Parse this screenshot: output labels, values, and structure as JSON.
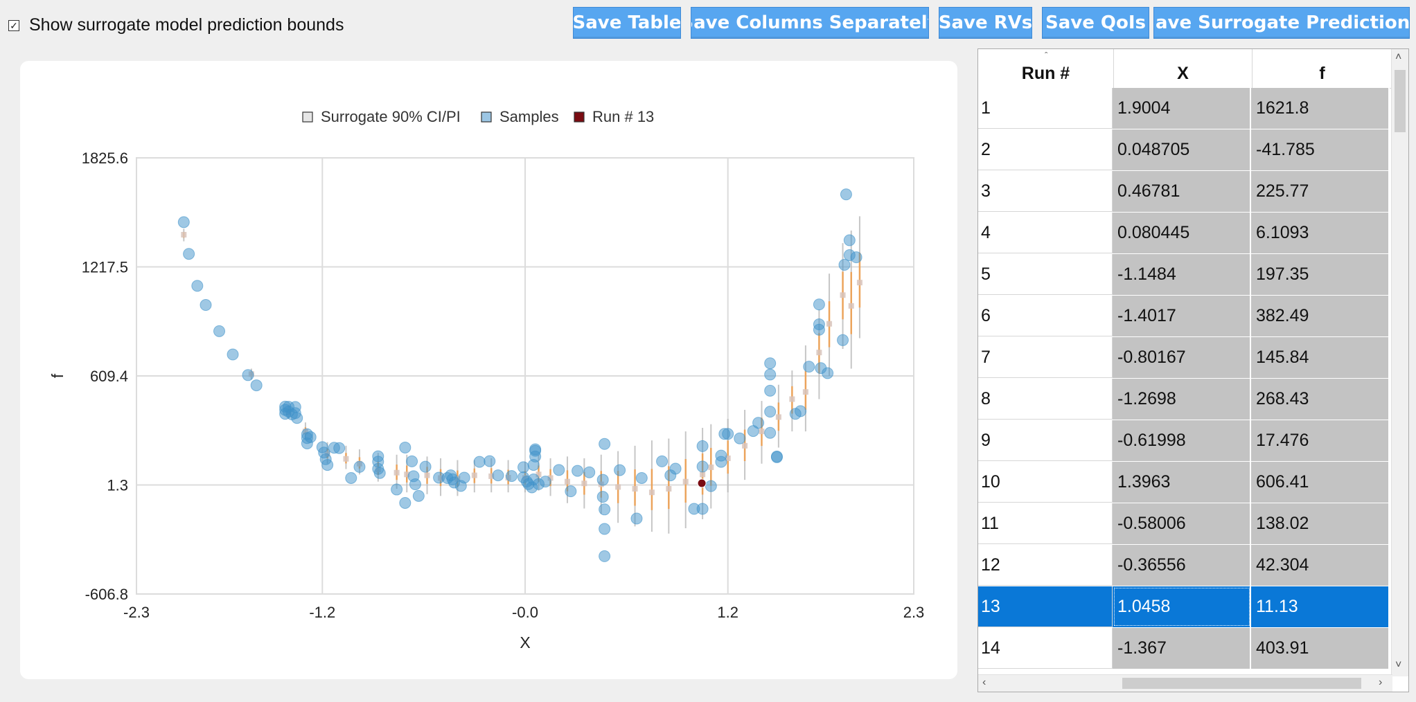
{
  "toolbar": {
    "checkbox_label": "Show surrogate model prediction bounds",
    "checkbox_checked": true,
    "buttons": [
      {
        "label": "Save Table"
      },
      {
        "label": "Save Columns Separately"
      },
      {
        "label": "Save RVs"
      },
      {
        "label": "Save QoIs"
      },
      {
        "label": "Save Surrogate Predictions"
      }
    ]
  },
  "chart_data": {
    "type": "scatter",
    "xlabel": "X",
    "ylabel": "f",
    "xlim": [
      -2.3,
      2.3
    ],
    "ylim": [
      -606.8,
      1825.6
    ],
    "xticks": [
      "-2.3",
      "-1.2",
      "-0.0",
      "1.2",
      "2.3"
    ],
    "xtick_values": [
      -2.3,
      -1.2,
      0.0,
      1.2,
      2.3
    ],
    "yticks": [
      "-606.8",
      "1.3",
      "609.4",
      "1217.5",
      "1825.6"
    ],
    "ytick_values": [
      -606.8,
      1.3,
      609.4,
      1217.5,
      1825.6
    ],
    "grid": true,
    "legend_position": "top",
    "legend": [
      {
        "label": "Surrogate 90% CI/PI",
        "color": "#e6e6e6"
      },
      {
        "label": "Samples",
        "color": "#9cc6e4"
      },
      {
        "label": "Run # 13",
        "color": "#7a0c12"
      }
    ],
    "series": [
      {
        "name": "Samples",
        "points": [
          [
            -2.02,
            1467
          ],
          [
            -1.99,
            1290
          ],
          [
            -1.94,
            1112
          ],
          [
            -1.89,
            1005
          ],
          [
            -1.81,
            859
          ],
          [
            -1.73,
            729
          ],
          [
            -1.64,
            614
          ],
          [
            -1.59,
            557
          ],
          [
            -1.42,
            438
          ],
          [
            -1.42,
            420
          ],
          [
            -1.42,
            398
          ],
          [
            -1.4,
            437
          ],
          [
            -1.4,
            410
          ],
          [
            -1.38,
            395
          ],
          [
            -1.36,
            436
          ],
          [
            -1.36,
            402
          ],
          [
            -1.35,
            375
          ],
          [
            -1.29,
            284
          ],
          [
            -1.29,
            263
          ],
          [
            -1.29,
            233
          ],
          [
            -1.27,
            268
          ],
          [
            -1.2,
            212
          ],
          [
            -1.19,
            182
          ],
          [
            -1.18,
            145
          ],
          [
            -1.17,
            113
          ],
          [
            -1.13,
            209
          ],
          [
            -1.1,
            207
          ],
          [
            -1.03,
            40
          ],
          [
            -0.98,
            102
          ],
          [
            -0.87,
            161
          ],
          [
            -0.87,
            131
          ],
          [
            -0.87,
            91
          ],
          [
            -0.86,
            68
          ],
          [
            -0.76,
            -24
          ],
          [
            -0.71,
            -99
          ],
          [
            -0.71,
            210
          ],
          [
            -0.67,
            133
          ],
          [
            -0.66,
            50
          ],
          [
            -0.65,
            5
          ],
          [
            -0.63,
            -60
          ],
          [
            -0.59,
            103
          ],
          [
            -0.51,
            42
          ],
          [
            -0.46,
            40
          ],
          [
            -0.44,
            55
          ],
          [
            -0.43,
            33
          ],
          [
            -0.42,
            15
          ],
          [
            -0.38,
            -4
          ],
          [
            -0.36,
            42
          ],
          [
            -0.27,
            130
          ],
          [
            -0.21,
            134
          ],
          [
            -0.16,
            55
          ],
          [
            -0.08,
            51
          ],
          [
            -0.01,
            44
          ],
          [
            -0.01,
            100
          ],
          [
            0.01,
            20
          ],
          [
            0.02,
            6
          ],
          [
            0.04,
            -12
          ],
          [
            0.05,
            32
          ],
          [
            0.05,
            113
          ],
          [
            0.06,
            160
          ],
          [
            0.06,
            192
          ],
          [
            0.06,
            200
          ],
          [
            0.08,
            6
          ],
          [
            0.12,
            20
          ],
          [
            0.2,
            85
          ],
          [
            0.27,
            -34
          ],
          [
            0.31,
            80
          ],
          [
            0.38,
            72
          ],
          [
            0.46,
            30
          ],
          [
            0.46,
            -65
          ],
          [
            0.47,
            -135
          ],
          [
            0.47,
            -244
          ],
          [
            0.47,
            -396
          ],
          [
            0.47,
            230
          ],
          [
            0.56,
            84
          ],
          [
            0.66,
            -186
          ],
          [
            0.69,
            40
          ],
          [
            0.81,
            133
          ],
          [
            0.86,
            55
          ],
          [
            0.89,
            92
          ],
          [
            1.0,
            -132
          ],
          [
            1.05,
            -132
          ],
          [
            1.05,
            218
          ],
          [
            1.05,
            104
          ],
          [
            1.1,
            -5
          ],
          [
            1.16,
            130
          ],
          [
            1.16,
            165
          ],
          [
            1.18,
            286
          ],
          [
            1.2,
            286
          ],
          [
            1.27,
            261
          ],
          [
            1.35,
            302
          ],
          [
            1.38,
            348
          ],
          [
            1.45,
            680
          ],
          [
            1.45,
            617
          ],
          [
            1.45,
            527
          ],
          [
            1.45,
            410
          ],
          [
            1.45,
            292
          ],
          [
            1.49,
            156
          ],
          [
            1.49,
            160
          ],
          [
            1.6,
            398
          ],
          [
            1.63,
            413
          ],
          [
            1.68,
            661
          ],
          [
            1.74,
            897
          ],
          [
            1.74,
            867
          ],
          [
            1.74,
            1008
          ],
          [
            1.75,
            653
          ],
          [
            1.79,
            625
          ],
          [
            1.88,
            809
          ],
          [
            1.89,
            1229
          ],
          [
            1.9,
            1621.8
          ],
          [
            1.92,
            1283
          ],
          [
            1.92,
            1366
          ],
          [
            1.96,
            1271
          ]
        ]
      },
      {
        "name": "Run # 13",
        "points": [
          [
            1.0458,
            11.13
          ]
        ]
      }
    ],
    "predictions": [
      [
        -2.02,
        1397,
        1360,
        1430
      ],
      [
        -1.62,
        620,
        590,
        650
      ],
      [
        -1.4,
        405,
        370,
        450
      ],
      [
        -1.3,
        300,
        260,
        350
      ],
      [
        -1.17,
        175,
        120,
        240
      ],
      [
        -1.06,
        147,
        90,
        220
      ],
      [
        -0.98,
        120,
        60,
        200
      ],
      [
        -0.87,
        88,
        20,
        180
      ],
      [
        -0.76,
        70,
        -20,
        170
      ],
      [
        -0.7,
        60,
        -40,
        170
      ],
      [
        -0.58,
        55,
        -50,
        160
      ],
      [
        -0.5,
        40,
        -60,
        150
      ],
      [
        -0.4,
        35,
        -60,
        140
      ],
      [
        -0.3,
        55,
        -40,
        140
      ],
      [
        -0.2,
        50,
        -40,
        150
      ],
      [
        -0.1,
        42,
        -40,
        140
      ],
      [
        0.0,
        40,
        -40,
        130
      ],
      [
        0.08,
        60,
        -30,
        170
      ],
      [
        0.15,
        40,
        -60,
        150
      ],
      [
        0.25,
        20,
        -100,
        160
      ],
      [
        0.35,
        10,
        -130,
        150
      ],
      [
        0.45,
        5,
        -160,
        170
      ],
      [
        0.55,
        -10,
        -210,
        190
      ],
      [
        0.65,
        -20,
        -230,
        220
      ],
      [
        0.75,
        -40,
        -260,
        250
      ],
      [
        0.85,
        -20,
        -270,
        260
      ],
      [
        0.95,
        20,
        -240,
        300
      ],
      [
        1.05,
        60,
        -190,
        320
      ],
      [
        1.1,
        100,
        -130,
        340
      ],
      [
        1.2,
        150,
        -40,
        370
      ],
      [
        1.3,
        220,
        30,
        420
      ],
      [
        1.4,
        300,
        120,
        470
      ],
      [
        1.5,
        380,
        210,
        560
      ],
      [
        1.58,
        480,
        300,
        640
      ],
      [
        1.66,
        520,
        300,
        780
      ],
      [
        1.74,
        740,
        480,
        980
      ],
      [
        1.8,
        900,
        610,
        1180
      ],
      [
        1.88,
        1060,
        760,
        1350
      ],
      [
        1.93,
        1000,
        650,
        1420
      ],
      [
        1.98,
        1130,
        820,
        1500
      ]
    ]
  },
  "table": {
    "columns": [
      "Run #",
      "X",
      "f"
    ],
    "selected_row": 13,
    "rows": [
      [
        "1",
        "1.9004",
        "1621.8"
      ],
      [
        "2",
        "0.048705",
        "-41.785"
      ],
      [
        "3",
        "0.46781",
        "225.77"
      ],
      [
        "4",
        "0.080445",
        "6.1093"
      ],
      [
        "5",
        "-1.1484",
        "197.35"
      ],
      [
        "6",
        "-1.4017",
        "382.49"
      ],
      [
        "7",
        "-0.80167",
        "145.84"
      ],
      [
        "8",
        "-1.2698",
        "268.43"
      ],
      [
        "9",
        "-0.61998",
        "17.476"
      ],
      [
        "10",
        "1.3963",
        "606.41"
      ],
      [
        "11",
        "-0.58006",
        "138.02"
      ],
      [
        "12",
        "-0.36556",
        "42.304"
      ],
      [
        "13",
        "1.0458",
        "11.13"
      ],
      [
        "14",
        "-1.367",
        "403.91"
      ]
    ]
  },
  "colors": {
    "button_bg": "#57a6f0",
    "sample": "#3f92c9",
    "highlight": "#7a0c12",
    "selected_row": "#0a78d7",
    "cell_bg": "#c3c3c3",
    "ci_orange": "#f0a050",
    "ci_gray": "#b8b8b8"
  }
}
